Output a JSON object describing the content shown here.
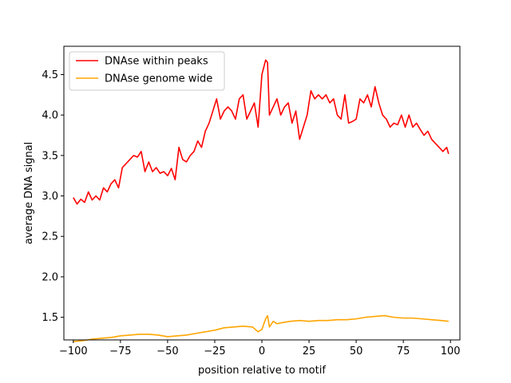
{
  "chart_data": {
    "type": "line",
    "title": "",
    "xlabel": "position relative to motif",
    "ylabel": "average DNA signal",
    "xlim": [
      -105,
      105
    ],
    "ylim": [
      1.22,
      4.85
    ],
    "xticks": [
      -100,
      -75,
      -50,
      -25,
      0,
      25,
      50,
      75,
      100
    ],
    "xtick_labels": [
      "−100",
      "−75",
      "−50",
      "−25",
      "0",
      "25",
      "50",
      "75",
      "100"
    ],
    "yticks": [
      1.5,
      2.0,
      2.5,
      3.0,
      3.5,
      4.0,
      4.5
    ],
    "ytick_labels": [
      "1.5",
      "2.0",
      "2.5",
      "3.0",
      "3.5",
      "4.0",
      "4.5"
    ],
    "grid": false,
    "legend_position": "top-left",
    "series": [
      {
        "name": "DNAse within peaks",
        "color": "#ff0000",
        "x": [
          -100,
          -98,
          -96,
          -94,
          -92,
          -90,
          -88,
          -86,
          -84,
          -82,
          -80,
          -78,
          -76,
          -74,
          -72,
          -70,
          -68,
          -66,
          -64,
          -62,
          -60,
          -58,
          -56,
          -54,
          -52,
          -50,
          -48,
          -46,
          -44,
          -42,
          -40,
          -38,
          -36,
          -34,
          -32,
          -30,
          -28,
          -26,
          -24,
          -22,
          -20,
          -18,
          -16,
          -14,
          -12,
          -10,
          -8,
          -6,
          -4,
          -2,
          0,
          2,
          3,
          4,
          6,
          8,
          10,
          12,
          14,
          16,
          18,
          20,
          22,
          24,
          26,
          28,
          30,
          32,
          34,
          36,
          38,
          40,
          42,
          44,
          46,
          48,
          50,
          52,
          54,
          56,
          58,
          60,
          62,
          64,
          66,
          68,
          70,
          72,
          74,
          76,
          78,
          80,
          82,
          84,
          86,
          88,
          90,
          92,
          94,
          96,
          98,
          99
        ],
        "values": [
          2.98,
          2.9,
          2.96,
          2.92,
          3.05,
          2.95,
          3.0,
          2.95,
          3.1,
          3.05,
          3.15,
          3.2,
          3.1,
          3.35,
          3.4,
          3.45,
          3.5,
          3.48,
          3.55,
          3.3,
          3.42,
          3.3,
          3.35,
          3.28,
          3.3,
          3.25,
          3.34,
          3.2,
          3.6,
          3.45,
          3.42,
          3.5,
          3.55,
          3.68,
          3.6,
          3.8,
          3.9,
          4.05,
          4.2,
          3.95,
          4.05,
          4.1,
          4.05,
          3.95,
          4.2,
          4.25,
          3.95,
          4.05,
          4.15,
          3.85,
          4.5,
          4.68,
          4.65,
          4.0,
          4.1,
          4.2,
          4.0,
          4.1,
          4.15,
          3.9,
          4.05,
          3.7,
          3.85,
          4.0,
          4.3,
          4.2,
          4.25,
          4.2,
          4.25,
          4.15,
          4.2,
          4.0,
          3.95,
          4.25,
          3.9,
          3.92,
          3.95,
          4.2,
          4.15,
          4.25,
          4.1,
          4.35,
          4.15,
          4.0,
          3.95,
          3.85,
          3.9,
          3.88,
          4.0,
          3.85,
          4.0,
          3.85,
          3.9,
          3.82,
          3.75,
          3.8,
          3.7,
          3.65,
          3.6,
          3.55,
          3.6,
          3.52
        ]
      },
      {
        "name": "DNAse genome wide",
        "color": "#ffa500",
        "x": [
          -100,
          -95,
          -90,
          -85,
          -80,
          -75,
          -70,
          -65,
          -60,
          -55,
          -50,
          -45,
          -40,
          -35,
          -30,
          -25,
          -20,
          -15,
          -10,
          -5,
          -2,
          0,
          2,
          3,
          4,
          6,
          8,
          10,
          15,
          20,
          25,
          30,
          35,
          40,
          45,
          50,
          55,
          60,
          65,
          70,
          75,
          80,
          85,
          90,
          95,
          99
        ],
        "values": [
          1.2,
          1.21,
          1.23,
          1.24,
          1.25,
          1.27,
          1.28,
          1.29,
          1.29,
          1.28,
          1.26,
          1.27,
          1.28,
          1.3,
          1.32,
          1.34,
          1.37,
          1.38,
          1.39,
          1.38,
          1.32,
          1.35,
          1.48,
          1.52,
          1.38,
          1.45,
          1.42,
          1.43,
          1.45,
          1.46,
          1.45,
          1.46,
          1.46,
          1.47,
          1.47,
          1.48,
          1.5,
          1.51,
          1.52,
          1.5,
          1.49,
          1.49,
          1.48,
          1.47,
          1.46,
          1.45
        ]
      }
    ]
  }
}
